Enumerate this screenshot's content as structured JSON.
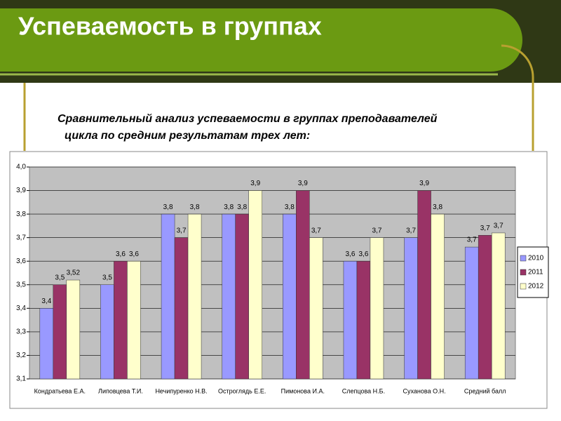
{
  "chart_data": {
    "type": "bar",
    "title": "Успеваемость в группах",
    "subtitle": [
      "Сравнительный анализ успеваемости в группах преподавателей",
      "цикла  по средним  результатам  трех лет:"
    ],
    "categories": [
      "Кондратьева Е.А.",
      "Липовцева Т.И.",
      "Нечипуренко Н.В.",
      "Остроглядь Е.Е.",
      "Пимонова И.А.",
      "Слепцова Н.Б.",
      "Суханова О.Н.",
      "Средний балл"
    ],
    "series": [
      {
        "name": "2010",
        "color": "#9999ff",
        "values": [
          3.4,
          3.5,
          3.8,
          3.8,
          3.8,
          3.6,
          3.7,
          3.66
        ],
        "value_labels": [
          "3,4",
          "3,5",
          "3,8",
          "3,8",
          "3,8",
          "3,6",
          "3,7",
          "3,7"
        ]
      },
      {
        "name": "2011",
        "color": "#993366",
        "values": [
          3.5,
          3.6,
          3.7,
          3.8,
          3.9,
          3.6,
          3.9,
          3.71
        ],
        "value_labels": [
          "3,5",
          "3,6",
          "3,7",
          "3,8",
          "3,9",
          "3,6",
          "3,9",
          "3,7"
        ]
      },
      {
        "name": "2012",
        "color": "#ffffcc",
        "values": [
          3.52,
          3.6,
          3.8,
          3.9,
          3.7,
          3.7,
          3.8,
          3.72
        ],
        "value_labels": [
          "3,52",
          "3,6",
          "3,8",
          "3,9",
          "3,7",
          "3,7",
          "3,8",
          "3,7"
        ]
      }
    ],
    "ylim": [
      3.1,
      4.0
    ],
    "yticks": [
      {
        "value": 3.1,
        "label": "3,1"
      },
      {
        "value": 3.2,
        "label": "3,2"
      },
      {
        "value": 3.3,
        "label": "3,3"
      },
      {
        "value": 3.4,
        "label": "3,4"
      },
      {
        "value": 3.5,
        "label": "3,5"
      },
      {
        "value": 3.6,
        "label": "3,6"
      },
      {
        "value": 3.7,
        "label": "3,7"
      },
      {
        "value": 3.8,
        "label": "3,8"
      },
      {
        "value": 3.9,
        "label": "3,9"
      },
      {
        "value": 4.0,
        "label": "4,0"
      }
    ],
    "grid": true,
    "legend": "right"
  }
}
